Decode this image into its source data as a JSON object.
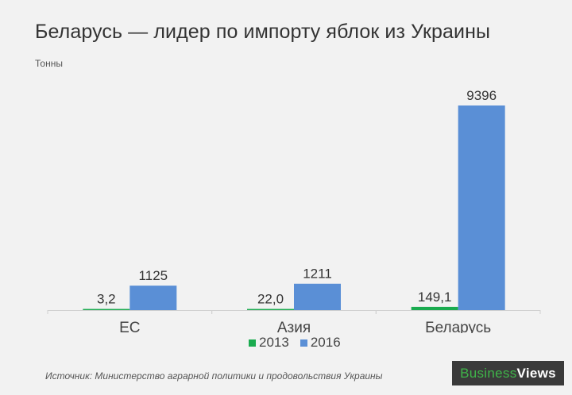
{
  "chart_data": {
    "type": "bar",
    "title": "Беларусь — лидер по импорту яблок из Украины",
    "ylabel": "Тонны",
    "categories": [
      "ЕС",
      "Азия",
      "Беларусь"
    ],
    "series": [
      {
        "name": "2013",
        "values": [
          3.2,
          22.0,
          149.1
        ],
        "labels": [
          "3,2",
          "22,0",
          "149,1"
        ],
        "color": "#1aab4f"
      },
      {
        "name": "2016",
        "values": [
          1125,
          1211,
          9396
        ],
        "labels": [
          "1125",
          "1211",
          "9396"
        ],
        "color": "#5a8fd6"
      }
    ],
    "ylim": [
      0,
      9396
    ],
    "grid": false,
    "legend_position": "bottom"
  },
  "source": "Источник: Министерство аграрной политики и продовольствия Украины",
  "logo": {
    "part1": "Business",
    "part2": "Views"
  }
}
